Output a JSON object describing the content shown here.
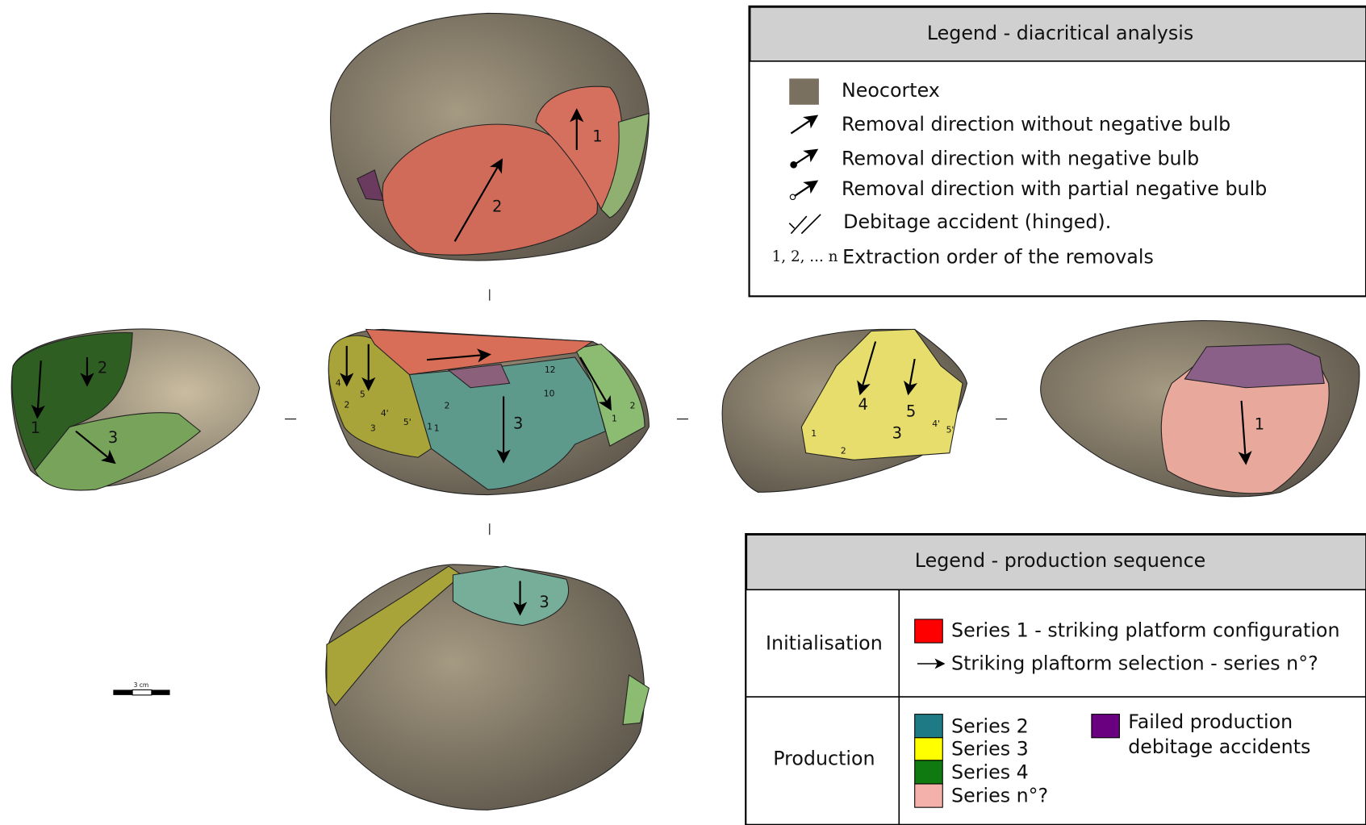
{
  "diacritical_legend": {
    "title": "Legend - diacritical analysis",
    "items": [
      "Neocortex",
      "Removal direction without negative bulb",
      "Removal direction with negative bulb",
      "Removal direction with partial negative bulb",
      "Debitage accident (hinged)."
    ],
    "order_symbol": "1, 2, ... n",
    "order_text": "Extraction order of the removals"
  },
  "production_legend": {
    "title": "Legend - production sequence",
    "initialisation": {
      "label": "Initialisation",
      "items": [
        "Series 1 - striking platform configuration",
        "Striking plaftorm selection - series n°?"
      ]
    },
    "production": {
      "label": "Production",
      "items": [
        "Series 2",
        "Series 3",
        "Series 4",
        "Series n°?"
      ],
      "failed": [
        "Failed production",
        "debitage accidents"
      ]
    }
  },
  "scale_bar": "3 cm",
  "views": {
    "top": [
      "1",
      "2"
    ],
    "left": [
      "1",
      "2",
      "3"
    ],
    "center": [
      "4",
      "5",
      "4'",
      "5'",
      "3",
      "2",
      "1",
      "3",
      "2",
      "1",
      "12",
      "10",
      "1",
      "2"
    ],
    "right": [
      "4",
      "5",
      "3",
      "4'",
      "5'",
      "1",
      "2"
    ],
    "far_right": [
      "1"
    ],
    "bottom": [
      "3"
    ]
  }
}
